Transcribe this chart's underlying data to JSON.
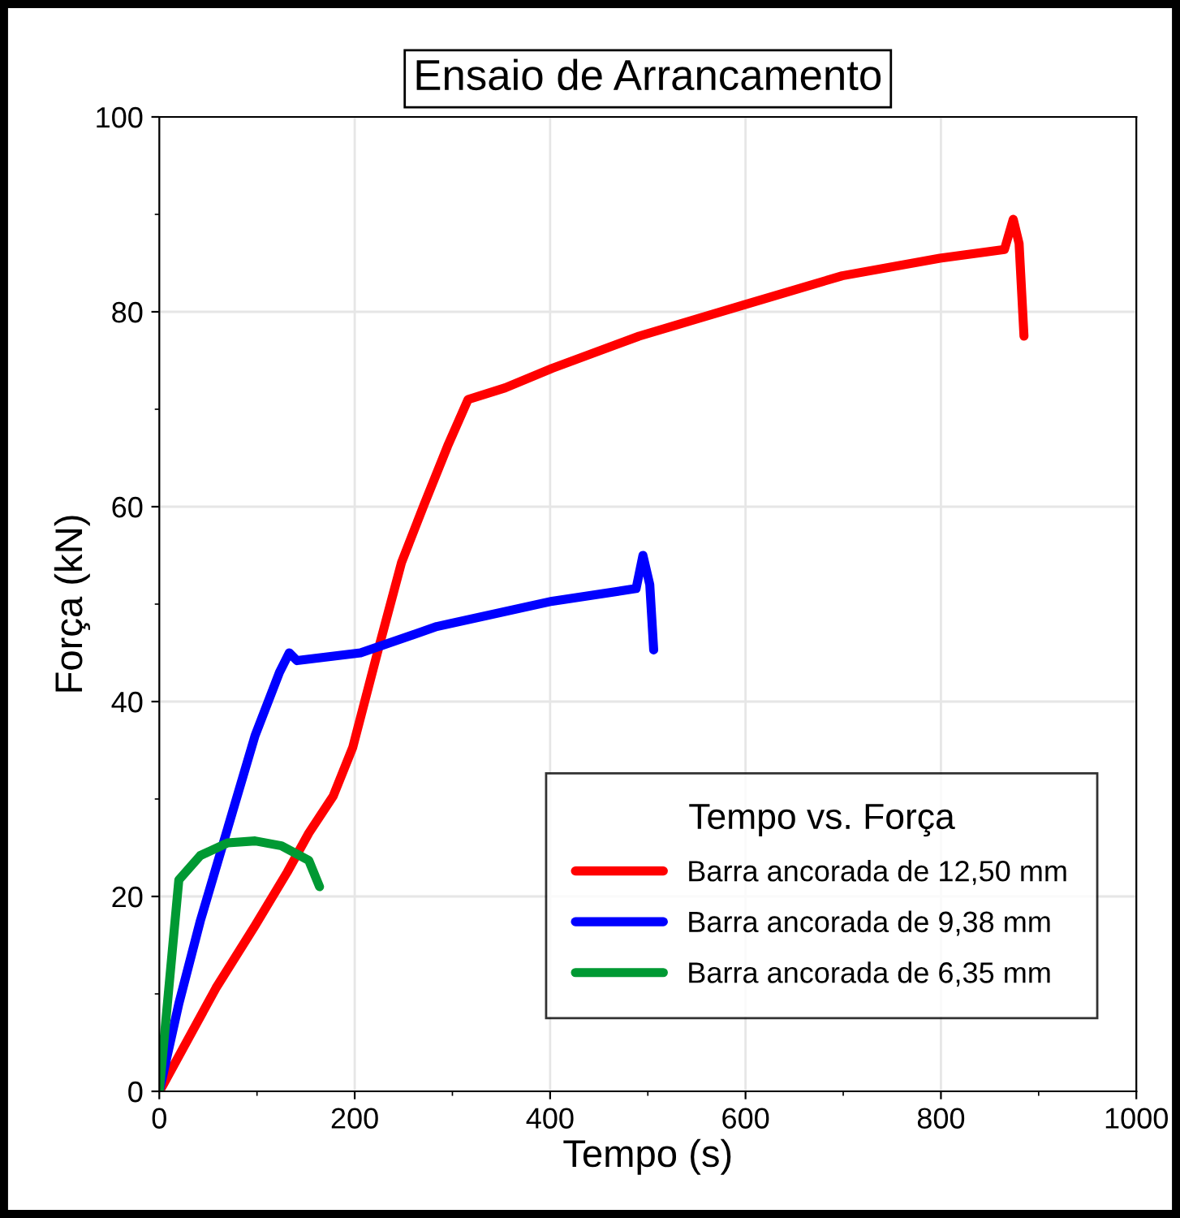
{
  "chart_data": {
    "type": "line",
    "title": "Ensaio de Arrancamento",
    "xlabel": "Tempo (s)",
    "ylabel": "Força (kN)",
    "legend_title": "Tempo vs. Força",
    "xlim": [
      0,
      1000
    ],
    "ylim": [
      0,
      100
    ],
    "xticks": [
      0,
      200,
      400,
      600,
      800,
      1000
    ],
    "yticks": [
      0,
      20,
      40,
      60,
      80,
      100
    ],
    "grid": true,
    "legend": "bottom right",
    "marker": "none",
    "line_style": "solid",
    "series": [
      {
        "name": "Barra ancorada de 12,50 mm",
        "color": "#ff0000",
        "x": [
          0,
          3,
          58,
          98,
          131,
          153,
          178,
          198,
          224,
          248,
          271,
          295,
          316,
          354,
          402,
          491,
          598,
          699,
          799,
          865,
          874,
          880,
          885
        ],
        "values": [
          0,
          0.5,
          10.6,
          17,
          22.5,
          26.5,
          30.3,
          35.3,
          45.3,
          54.3,
          60.2,
          66.2,
          71,
          72.2,
          74.2,
          77.5,
          80.7,
          83.7,
          85.5,
          86.4,
          89.5,
          87,
          77.5
        ]
      },
      {
        "name": "Barra ancorada de 9,38 mm",
        "color": "#0000ff",
        "x": [
          0,
          20,
          42,
          70,
          98,
          123,
          133,
          141,
          206,
          284,
          402,
          488,
          495,
          502,
          506
        ],
        "values": [
          0,
          9,
          17.5,
          27,
          36.5,
          43,
          45,
          44.2,
          45,
          47.7,
          50.3,
          51.6,
          55,
          52,
          45.3
        ]
      },
      {
        "name": "Barra ancorada de 6,35 mm",
        "color": "#009933",
        "x": [
          0,
          20,
          42,
          70,
          98,
          125,
          153,
          164
        ],
        "values": [
          0,
          21.7,
          24.2,
          25.5,
          25.7,
          25.2,
          23.7,
          21
        ]
      }
    ]
  }
}
